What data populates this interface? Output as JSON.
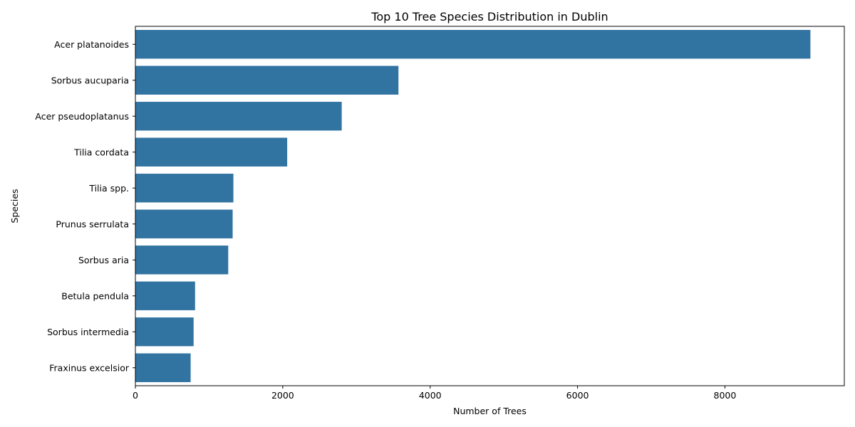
{
  "chart_data": {
    "type": "bar",
    "orientation": "horizontal",
    "title": "Top 10 Tree Species Distribution in Dublin",
    "xlabel": "Number of Trees",
    "ylabel": "Species",
    "categories": [
      "Acer platanoides",
      "Sorbus aucuparia",
      "Acer pseudoplatanus",
      "Tilia cordata",
      "Tilia spp.",
      "Prunus serrulata",
      "Sorbus aria",
      "Betula pendula",
      "Sorbus intermedia",
      "Fraxinus excelsior"
    ],
    "values": [
      9160,
      3570,
      2800,
      2060,
      1330,
      1320,
      1260,
      810,
      790,
      750
    ],
    "xlim": [
      0,
      9620
    ],
    "xticks": [
      0,
      2000,
      4000,
      6000,
      8000
    ],
    "xtick_labels": [
      "0",
      "2000",
      "4000",
      "6000",
      "8000"
    ],
    "bar_color": "#3274a1",
    "grid": false,
    "legend": "none"
  }
}
